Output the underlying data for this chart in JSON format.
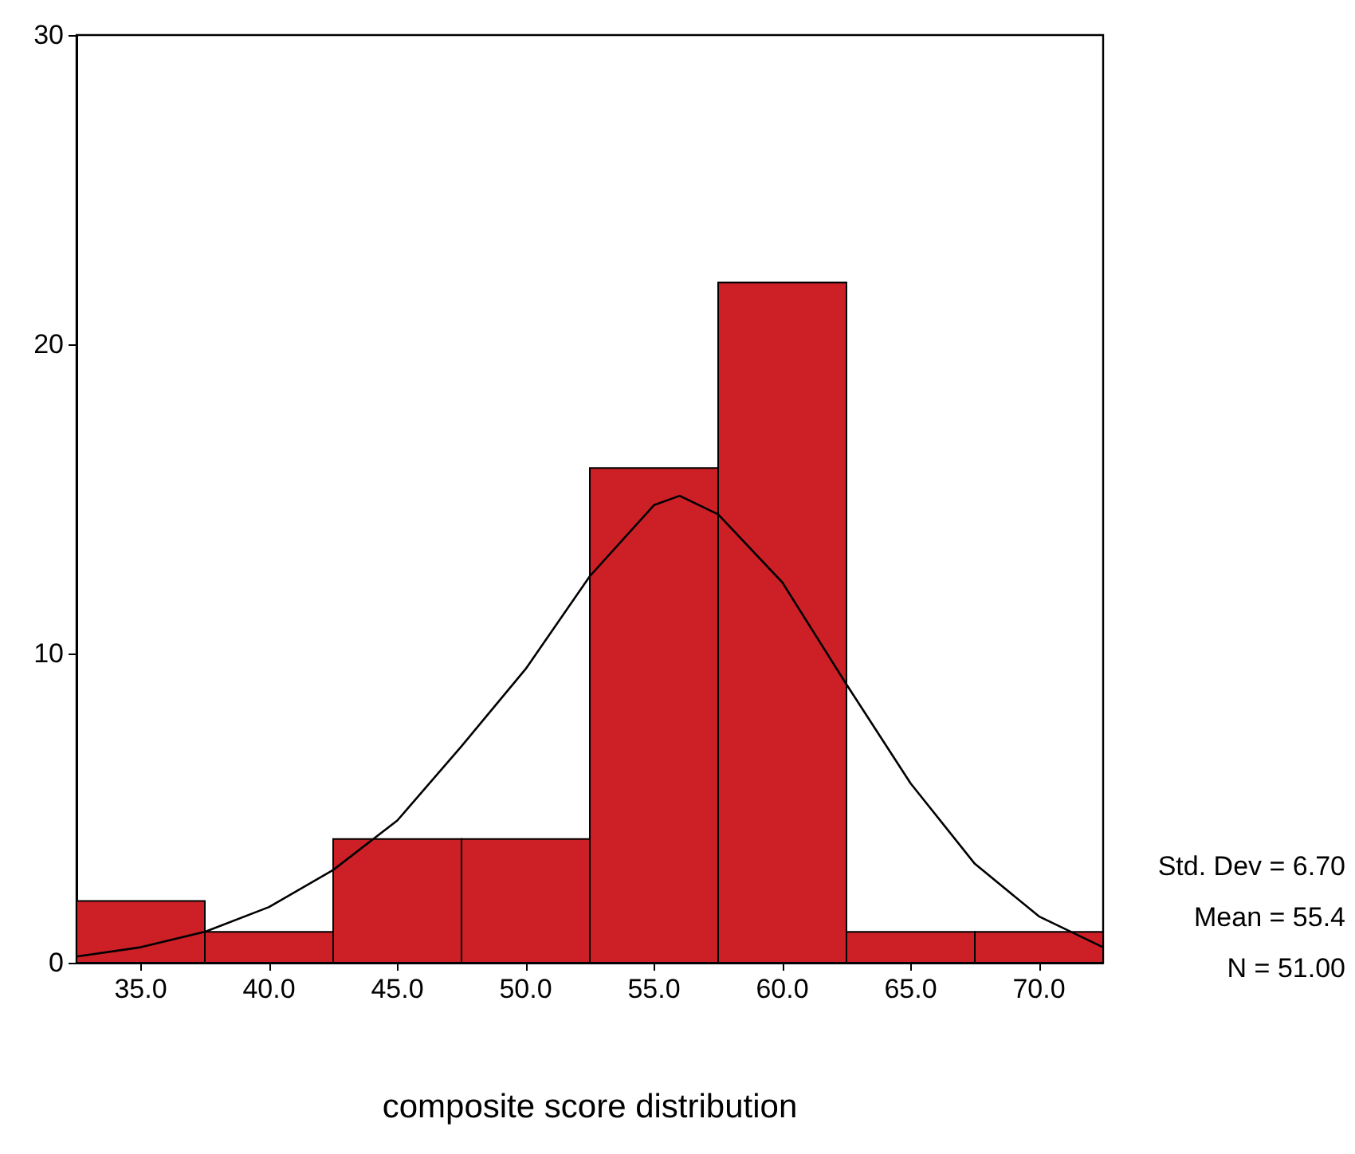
{
  "chart_data": {
    "type": "histogram",
    "xlabel": "composite score distribution",
    "bins": [
      32.5,
      37.5,
      42.5,
      47.5,
      52.5,
      57.5,
      62.5,
      67.5,
      72.5
    ],
    "values": [
      2,
      1,
      4,
      4,
      16,
      22,
      1,
      1
    ],
    "color": "#cc2026",
    "series": [
      {
        "type": "line",
        "color": "#000000",
        "x": [
          32.5,
          35,
          37.5,
          40,
          42.5,
          45,
          47.5,
          50,
          52.5,
          55,
          56,
          57.5,
          60,
          62.5,
          65,
          67.5,
          70,
          72.5
        ],
        "values": [
          0.2,
          0.5,
          1.0,
          1.8,
          3.0,
          4.6,
          7.0,
          9.5,
          12.5,
          14.8,
          15.1,
          14.5,
          12.3,
          9.0,
          5.8,
          3.2,
          1.5,
          0.5
        ]
      }
    ],
    "xlim": [
      32.5,
      72.5
    ],
    "xticks": [
      {
        "value": 35,
        "label": "35.0"
      },
      {
        "value": 40,
        "label": "40.0"
      },
      {
        "value": 45,
        "label": "45.0"
      },
      {
        "value": 50,
        "label": "50.0"
      },
      {
        "value": 55,
        "label": "55.0"
      },
      {
        "value": 60,
        "label": "60.0"
      },
      {
        "value": 65,
        "label": "65.0"
      },
      {
        "value": 70,
        "label": "70.0"
      }
    ],
    "ylim": [
      0,
      30
    ],
    "yticks": [
      0,
      10,
      20,
      30
    ],
    "annotations": [
      "Std. Dev = 6.70",
      "Mean = 55.4",
      "N = 51.00"
    ],
    "grid": false,
    "marker": "none",
    "line_style": "solid"
  }
}
